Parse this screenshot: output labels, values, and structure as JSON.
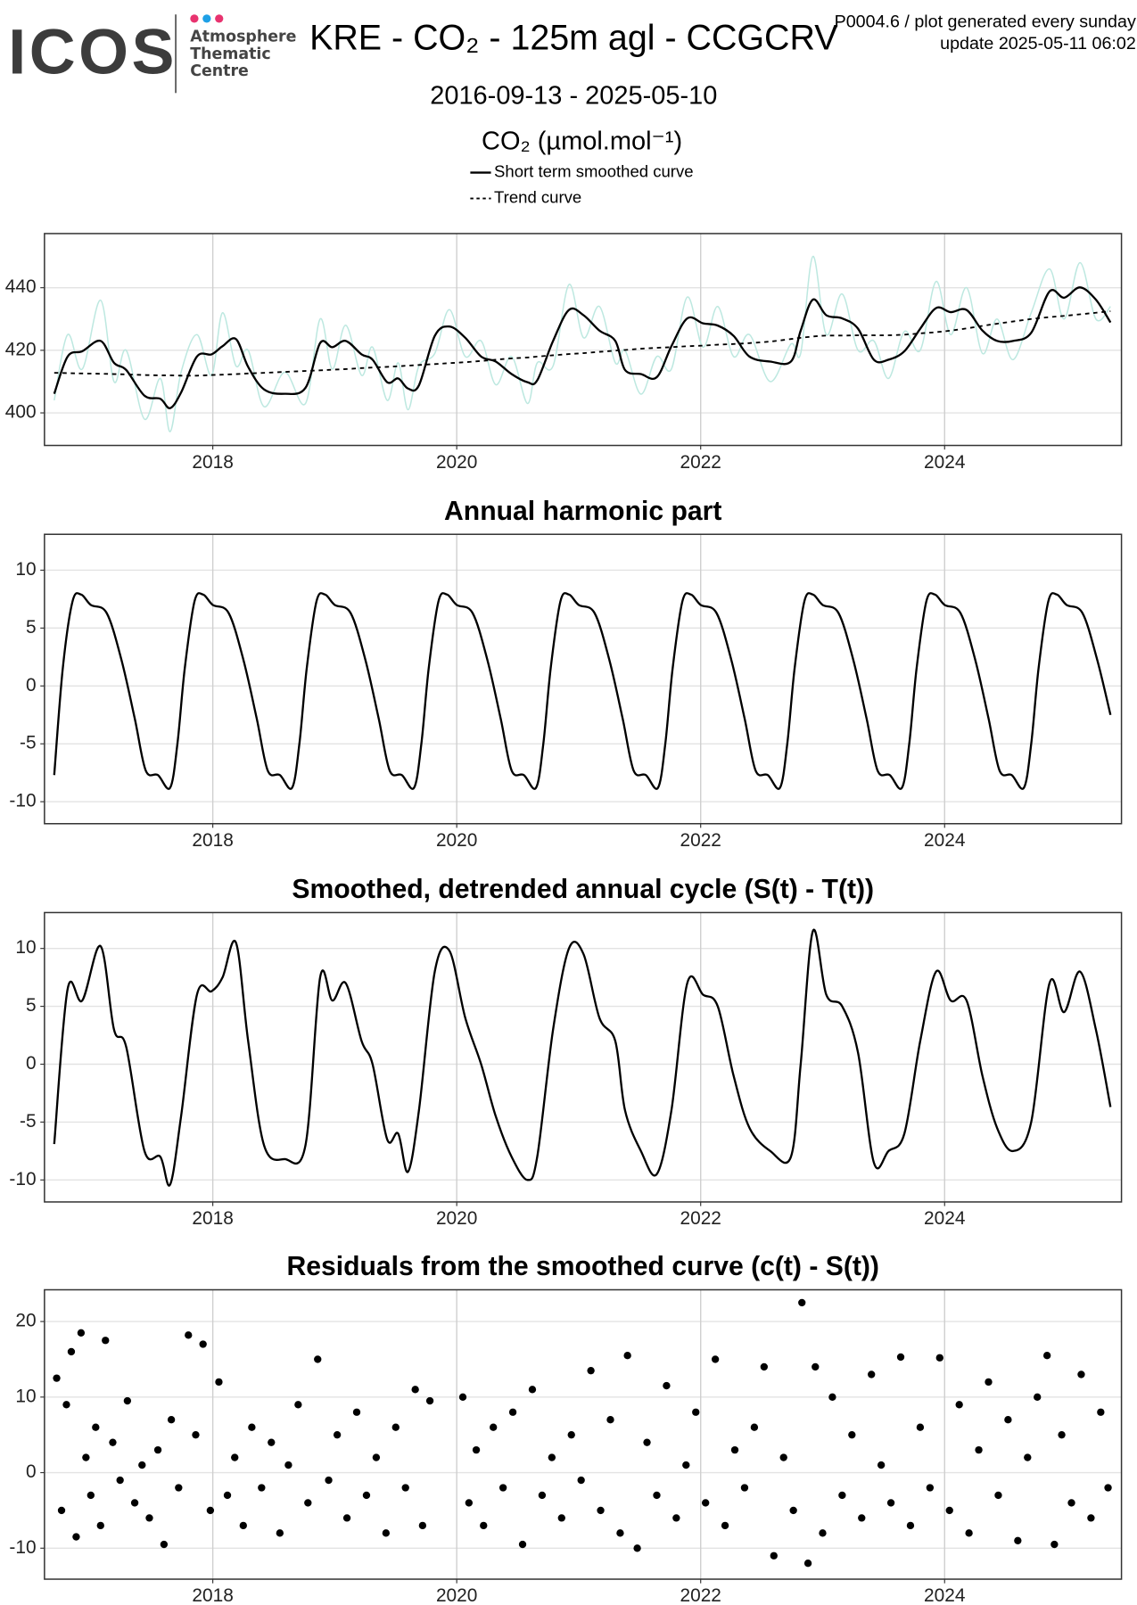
{
  "header": {
    "logo": "ICOS",
    "logo_lines": [
      "Atmosphere",
      "Thematic",
      "Centre"
    ],
    "note": "P0004.6 / plot generated every sunday",
    "update": "update  2025-05-11 06:02"
  },
  "chart_data": [
    {
      "type": "line",
      "title": "KRE - CO₂ - 125m agl - CCGCRV",
      "subtitle": "2016-09-13 - 2025-05-10",
      "y_label": "CO₂ (µmol.mol⁻¹)",
      "x": [
        2016.7,
        2016.81,
        2016.93,
        2017.08,
        2017.19,
        2017.29,
        2017.44,
        2017.57,
        2017.65,
        2017.74,
        2017.87,
        2017.99,
        2018.08,
        2018.19,
        2018.29,
        2018.42,
        2018.59,
        2018.76,
        2018.88,
        2018.98,
        2019.09,
        2019.22,
        2019.31,
        2019.43,
        2019.52,
        2019.6,
        2019.69,
        2019.82,
        2019.94,
        2020.07,
        2020.2,
        2020.32,
        2020.45,
        2020.58,
        2020.66,
        2020.79,
        2020.92,
        2021.04,
        2021.17,
        2021.3,
        2021.38,
        2021.51,
        2021.64,
        2021.76,
        2021.89,
        2022.02,
        2022.14,
        2022.27,
        2022.4,
        2022.57,
        2022.74,
        2022.82,
        2022.92,
        2023.03,
        2023.16,
        2023.29,
        2023.42,
        2023.54,
        2023.67,
        2023.8,
        2023.93,
        2024.05,
        2024.18,
        2024.31,
        2024.43,
        2024.56,
        2024.71,
        2024.86,
        2024.98,
        2025.11,
        2025.24,
        2025.36
      ],
      "series": [
        {
          "color": "#bde8e0",
          "width": 1.3,
          "values": [
            404,
            425,
            414,
            436,
            410,
            420,
            398,
            411,
            394,
            413,
            425,
            412,
            432,
            415,
            420,
            402,
            413,
            403,
            430,
            414,
            428,
            412,
            421,
            404,
            416,
            401,
            415,
            419,
            433,
            418,
            423,
            409,
            418,
            403,
            416,
            415,
            441,
            424,
            434,
            416,
            420,
            406,
            418,
            414,
            437,
            421,
            434,
            418,
            425,
            410,
            422,
            419,
            450,
            425,
            438,
            420,
            423,
            411,
            426,
            420,
            442,
            425,
            440,
            419,
            430,
            417,
            432,
            446,
            430,
            448,
            430,
            434
          ]
        },
        {
          "name": "Short term smoothed curve",
          "color": "#000000",
          "width": 2,
          "values": [
            406.1,
            418,
            419.7,
            423,
            416,
            413.7,
            405.5,
            404.5,
            401.5,
            406.5,
            418,
            418.7,
            421.3,
            423.6,
            414.7,
            407.5,
            406.1,
            408,
            422.3,
            421,
            423,
            418.7,
            417,
            409.8,
            411,
            407.8,
            408.8,
            424.6,
            427.6,
            424,
            418,
            416.4,
            412.4,
            409.8,
            410.4,
            423,
            432.9,
            431.2,
            426.3,
            423,
            413.7,
            412.4,
            411.4,
            421.3,
            430.2,
            428.6,
            427.9,
            424.6,
            418,
            416.4,
            416.4,
            426.3,
            436.2,
            431.2,
            430.2,
            426.9,
            417,
            417,
            419.7,
            426.9,
            433.5,
            432.2,
            432.9,
            426.3,
            423,
            423,
            425.6,
            438.8,
            436.8,
            440.1,
            436.2,
            428.9
          ]
        },
        {
          "name": "Trend curve",
          "color": "#000000",
          "width": 1.6,
          "dashed": true,
          "values": [
            412.8,
            412.7,
            412.6,
            412.5,
            412.4,
            412.3,
            412.1,
            412.0,
            412.0,
            411.9,
            411.9,
            412.1,
            412.2,
            412.4,
            412.6,
            412.8,
            413.1,
            413.4,
            413.6,
            413.8,
            414.0,
            414.3,
            414.5,
            414.7,
            414.9,
            415.1,
            415.3,
            415.6,
            415.9,
            416.2,
            416.6,
            417.0,
            417.4,
            417.7,
            418.0,
            418.4,
            418.8,
            419.1,
            419.5,
            419.9,
            420.1,
            420.5,
            420.8,
            421.0,
            421.3,
            421.5,
            421.8,
            422.0,
            422.3,
            422.8,
            423.6,
            424.0,
            424.4,
            424.7,
            424.7,
            424.8,
            424.8,
            424.8,
            425.0,
            425.4,
            425.8,
            426.3,
            427.0,
            427.8,
            428.5,
            429.2,
            430.0,
            430.6,
            431.0,
            431.5,
            432.0,
            432.5
          ]
        }
      ],
      "xlim": [
        2016.62,
        2025.45
      ],
      "xticks": [
        2018,
        2020,
        2022,
        2024
      ],
      "ylim": [
        389.6,
        457.3
      ],
      "yticks": [
        400,
        420,
        440
      ],
      "grid": true
    },
    {
      "type": "line",
      "title": "Annual harmonic part",
      "x": [
        2016.7,
        2016.77,
        2016.85,
        2016.92,
        2017.0,
        2017.13,
        2017.25,
        2017.36,
        2017.45,
        2017.55,
        2017.65,
        2017.71,
        2017.77,
        2017.85,
        2017.92,
        2018.0,
        2018.13,
        2018.25,
        2018.36,
        2018.45,
        2018.55,
        2018.65,
        2018.71,
        2018.77,
        2018.85,
        2018.92,
        2019.0,
        2019.13,
        2019.25,
        2019.36,
        2019.45,
        2019.55,
        2019.65,
        2019.71,
        2019.77,
        2019.85,
        2019.92,
        2020.0,
        2020.13,
        2020.25,
        2020.36,
        2020.45,
        2020.55,
        2020.65,
        2020.71,
        2020.77,
        2020.85,
        2020.92,
        2021.0,
        2021.13,
        2021.25,
        2021.36,
        2021.45,
        2021.55,
        2021.65,
        2021.71,
        2021.77,
        2021.85,
        2021.92,
        2022.0,
        2022.13,
        2022.25,
        2022.36,
        2022.45,
        2022.55,
        2022.65,
        2022.71,
        2022.77,
        2022.85,
        2022.92,
        2023.0,
        2023.13,
        2023.25,
        2023.36,
        2023.45,
        2023.55,
        2023.65,
        2023.71,
        2023.77,
        2023.85,
        2023.92,
        2024.0,
        2024.13,
        2024.25,
        2024.36,
        2024.45,
        2024.55,
        2024.65,
        2024.71,
        2024.77,
        2024.85,
        2024.92,
        2025.0,
        2025.13,
        2025.25,
        2025.36
      ],
      "series": [
        {
          "color": "#000000",
          "width": 2,
          "values": [
            -7.7,
            1.5,
            7.3,
            7.9,
            7.0,
            6.3,
            2.3,
            -2.8,
            -7.3,
            -7.7,
            -8.8,
            -5,
            1.5,
            7.3,
            7.9,
            7.0,
            6.3,
            2.3,
            -2.8,
            -7.3,
            -7.7,
            -8.8,
            -5,
            1.5,
            7.3,
            7.9,
            7.0,
            6.3,
            2.3,
            -2.8,
            -7.3,
            -7.7,
            -8.8,
            -5,
            1.5,
            7.3,
            7.9,
            7.0,
            6.3,
            2.3,
            -2.8,
            -7.3,
            -7.7,
            -8.8,
            -5,
            1.5,
            7.3,
            7.9,
            7.0,
            6.3,
            2.3,
            -2.8,
            -7.3,
            -7.7,
            -8.8,
            -5,
            1.5,
            7.3,
            7.9,
            7.0,
            6.3,
            2.3,
            -2.8,
            -7.3,
            -7.7,
            -8.8,
            -5,
            1.5,
            7.3,
            7.9,
            7.0,
            6.3,
            2.3,
            -2.8,
            -7.3,
            -7.7,
            -8.8,
            -5,
            1.5,
            7.3,
            7.9,
            7.0,
            6.3,
            2.3,
            -2.8,
            -7.3,
            -7.7,
            -8.8,
            -5,
            1.5,
            7.3,
            7.9,
            7.0,
            6.3,
            2.3,
            -2.5
          ]
        }
      ],
      "xlim": [
        2016.62,
        2025.45
      ],
      "xticks": [
        2018,
        2020,
        2022,
        2024
      ],
      "ylim": [
        -11.9,
        13.1
      ],
      "yticks": [
        -10,
        -5,
        0,
        5,
        10
      ],
      "grid": true
    },
    {
      "type": "line",
      "title": "Smoothed, detrended annual cycle (S(t) - T(t))",
      "x": [
        2016.7,
        2016.81,
        2016.93,
        2017.08,
        2017.19,
        2017.29,
        2017.44,
        2017.57,
        2017.65,
        2017.74,
        2017.87,
        2017.99,
        2018.08,
        2018.19,
        2018.29,
        2018.42,
        2018.59,
        2018.76,
        2018.88,
        2018.98,
        2019.09,
        2019.22,
        2019.31,
        2019.43,
        2019.52,
        2019.6,
        2019.69,
        2019.82,
        2019.94,
        2020.07,
        2020.2,
        2020.32,
        2020.45,
        2020.58,
        2020.66,
        2020.79,
        2020.92,
        2021.04,
        2021.17,
        2021.3,
        2021.38,
        2021.51,
        2021.64,
        2021.76,
        2021.89,
        2022.02,
        2022.14,
        2022.27,
        2022.4,
        2022.57,
        2022.74,
        2022.82,
        2022.92,
        2023.03,
        2023.16,
        2023.29,
        2023.42,
        2023.54,
        2023.67,
        2023.8,
        2023.93,
        2024.05,
        2024.18,
        2024.31,
        2024.43,
        2024.56,
        2024.71,
        2024.86,
        2024.98,
        2025.11,
        2025.24,
        2025.36
      ],
      "series": [
        {
          "color": "#000000",
          "width": 2,
          "values": [
            -6.9,
            6.5,
            5.5,
            10.2,
            3,
            1.5,
            -7.5,
            -8,
            -10.4,
            -4.5,
            6,
            6.3,
            7.5,
            10.5,
            2,
            -7,
            -8.2,
            -7,
            7.5,
            5.5,
            7,
            2,
            0,
            -6.5,
            -6,
            -9.3,
            -4,
            8,
            9.8,
            4,
            0,
            -4.5,
            -8,
            -10,
            -8,
            3,
            10,
            9.5,
            4,
            2,
            -4,
            -7.5,
            -9.5,
            -4,
            7,
            6,
            5,
            -1,
            -5.5,
            -7.5,
            -8,
            0,
            11.5,
            6,
            5,
            1,
            -8.5,
            -7.5,
            -6,
            2,
            8,
            5.5,
            5.5,
            -1,
            -5.5,
            -7.5,
            -5,
            7,
            4.5,
            8,
            3,
            -3.7
          ]
        }
      ],
      "xlim": [
        2016.62,
        2025.45
      ],
      "xticks": [
        2018,
        2020,
        2022,
        2024
      ],
      "ylim": [
        -11.9,
        13.1
      ],
      "yticks": [
        -10,
        -5,
        0,
        5,
        10
      ],
      "grid": true
    },
    {
      "type": "scatter",
      "title": "Residuals from the smoothed curve (c(t) - S(t))",
      "color": "#000000",
      "x": [
        2016.72,
        2016.76,
        2016.8,
        2016.84,
        2016.88,
        2016.92,
        2016.96,
        2017.0,
        2017.04,
        2017.08,
        2017.12,
        2017.18,
        2017.24,
        2017.3,
        2017.36,
        2017.42,
        2017.48,
        2017.55,
        2017.6,
        2017.66,
        2017.72,
        2017.8,
        2017.86,
        2017.92,
        2017.98,
        2018.05,
        2018.12,
        2018.18,
        2018.25,
        2018.32,
        2018.4,
        2018.48,
        2018.55,
        2018.62,
        2018.7,
        2018.78,
        2018.86,
        2018.95,
        2019.02,
        2019.1,
        2019.18,
        2019.26,
        2019.34,
        2019.42,
        2019.5,
        2019.58,
        2019.66,
        2019.72,
        2019.78,
        2020.05,
        2020.1,
        2020.16,
        2020.22,
        2020.3,
        2020.38,
        2020.46,
        2020.54,
        2020.62,
        2020.7,
        2020.78,
        2020.86,
        2020.94,
        2021.02,
        2021.1,
        2021.18,
        2021.26,
        2021.34,
        2021.4,
        2021.48,
        2021.56,
        2021.64,
        2021.72,
        2021.8,
        2021.88,
        2021.96,
        2022.04,
        2022.12,
        2022.2,
        2022.28,
        2022.36,
        2022.44,
        2022.52,
        2022.6,
        2022.68,
        2022.76,
        2022.83,
        2022.88,
        2022.94,
        2023.0,
        2023.08,
        2023.16,
        2023.24,
        2023.32,
        2023.4,
        2023.48,
        2023.56,
        2023.64,
        2023.72,
        2023.8,
        2023.88,
        2023.96,
        2024.04,
        2024.12,
        2024.2,
        2024.28,
        2024.36,
        2024.44,
        2024.52,
        2024.6,
        2024.68,
        2024.76,
        2024.84,
        2024.9,
        2024.96,
        2025.04,
        2025.12,
        2025.2,
        2025.28,
        2025.34
      ],
      "values": [
        12.5,
        -5,
        9,
        16,
        -8.5,
        18.5,
        2,
        -3,
        6,
        -7,
        17.5,
        4,
        -1,
        9.5,
        -4,
        1,
        -6,
        3,
        -9.5,
        7,
        -2,
        18.2,
        5,
        17,
        -5,
        12,
        -3,
        2,
        -7,
        6,
        -2,
        4,
        -8,
        1,
        9,
        -4,
        15,
        -1,
        5,
        -6,
        8,
        -3,
        2,
        -8,
        6,
        -2,
        11,
        -7,
        9.5,
        10,
        -4,
        3,
        -7,
        6,
        -2,
        8,
        -9.5,
        11,
        -3,
        2,
        -6,
        5,
        -1,
        13.5,
        -5,
        7,
        -8,
        15.5,
        -10,
        4,
        -3,
        11.5,
        -6,
        1,
        8,
        -4,
        15,
        -7,
        3,
        -2,
        6,
        14,
        -11,
        2,
        -5,
        22.5,
        -12,
        14,
        -8,
        10,
        -3,
        5,
        -6,
        13,
        1,
        -4,
        15.3,
        -7,
        6,
        -2,
        15.2,
        -5,
        9,
        -8,
        3,
        12,
        -3,
        7,
        -9,
        2,
        10,
        15.5,
        -9.5,
        5,
        -4,
        13,
        -6,
        8,
        -2
      ],
      "xlim": [
        2016.62,
        2025.45
      ],
      "xticks": [
        2018,
        2020,
        2022,
        2024
      ],
      "ylim": [
        -14.1,
        24.2
      ],
      "yticks": [
        -10,
        0,
        10,
        20
      ],
      "grid": true
    }
  ]
}
